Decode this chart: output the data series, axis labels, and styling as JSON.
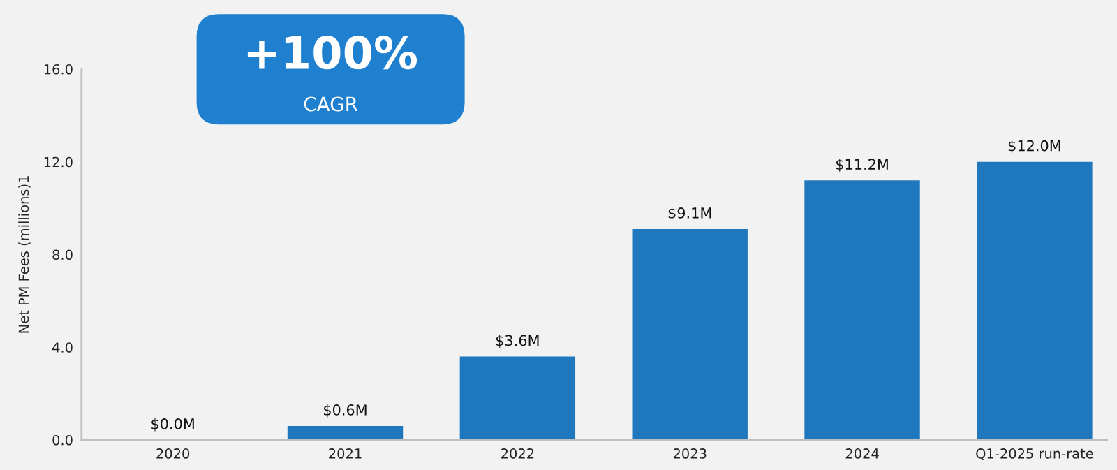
{
  "chart_data": {
    "type": "bar",
    "ylabel": "Net PM Fees (millions)1",
    "categories": [
      "2020",
      "2021",
      "2022",
      "2023",
      "2024",
      "Q1-2025 run-rate"
    ],
    "values": [
      0.0,
      0.6,
      3.6,
      9.1,
      11.2,
      12.0
    ],
    "value_labels": [
      "$0.0M",
      "$0.6M",
      "$3.6M",
      "$9.1M",
      "$11.2M",
      "$12.0M"
    ],
    "color": "#1f77bd",
    "ylim": [
      0,
      16
    ],
    "yticks": [
      {
        "value": 0,
        "label": "0.0"
      },
      {
        "value": 4,
        "label": "4.0"
      },
      {
        "value": 8,
        "label": "8.0"
      },
      {
        "value": 12,
        "label": "12.0"
      },
      {
        "value": 16,
        "label": "16.0"
      }
    ],
    "grid": false,
    "annotations": [
      "+100%",
      "CAGR"
    ]
  }
}
